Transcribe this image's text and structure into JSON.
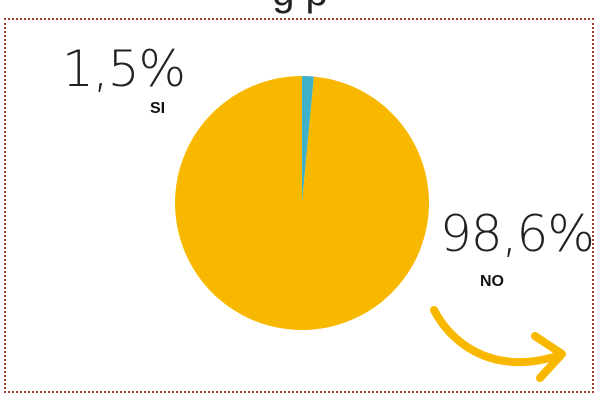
{
  "title": "g     p",
  "chart_data": {
    "type": "pie",
    "slices": [
      {
        "label": "SI",
        "value": 1.5,
        "display": "1,5%",
        "color": "#3fb1c8"
      },
      {
        "label": "NO",
        "value": 98.6,
        "display": "98,6%",
        "color": "#f9b800"
      }
    ]
  },
  "colors": {
    "border": "#a33a2a",
    "arrow": "#f9b800"
  }
}
